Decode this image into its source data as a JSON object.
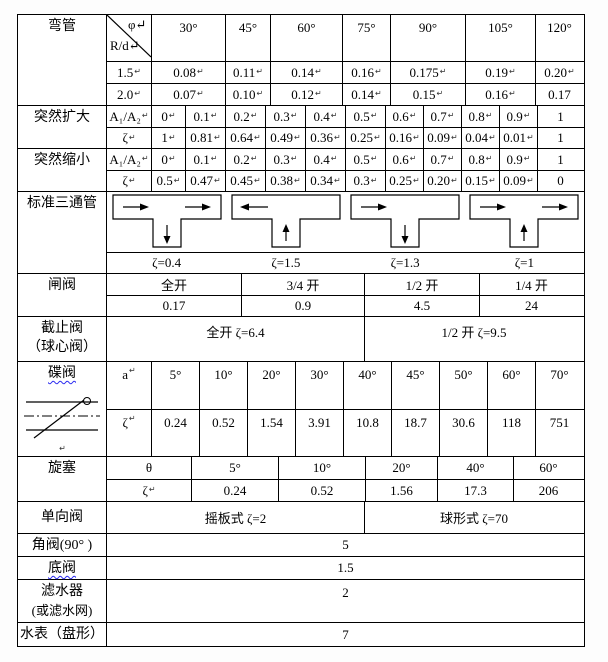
{
  "table": {
    "bend": {
      "label": "弯管",
      "corner_top": "φ↵",
      "corner_bottom": "R/d↵",
      "angles": [
        "30°",
        "45°",
        "60°",
        "75°",
        "90°",
        "105°",
        "120°"
      ],
      "rows": [
        [
          "1.5↵",
          "0.08↵",
          "0.11↵",
          "0.14↵",
          "0.16↵",
          "0.175↵",
          "0.19↵",
          "0.20↵"
        ],
        [
          "2.0↵",
          "0.07↵",
          "0.10↵",
          "0.12↵",
          "0.14↵",
          "0.15↵",
          "0.16↵",
          "0.17"
        ]
      ]
    },
    "expansion": {
      "label": "突然扩大",
      "rows": [
        [
          "A₁/A₂↵",
          "0↵",
          "0.1↵",
          "0.2↵",
          "0.3↵",
          "0.4↵",
          "0.5↵",
          "0.6↵",
          "0.7↵",
          "0.8↵",
          "0.9↵",
          "1"
        ],
        [
          "ζ↵",
          "1↵",
          "0.81↵",
          "0.64↵",
          "0.49↵",
          "0.36↵",
          "0.25↵",
          "0.16↵",
          "0.09↵",
          "0.04↵",
          "0.01↵",
          "1"
        ]
      ]
    },
    "contraction": {
      "label": "突然缩小",
      "rows": [
        [
          "A₁/A₂↵",
          "0↵",
          "0.1↵",
          "0.2↵",
          "0.3↵",
          "0.4↵",
          "0.5↵",
          "0.6↵",
          "0.7↵",
          "0.8↵",
          "0.9↵",
          "1"
        ],
        [
          "ζ↵",
          "0.5↵",
          "0.47↵",
          "0.45↵",
          "0.38↵",
          "0.34↵",
          "0.3↵",
          "0.25↵",
          "0.20↵",
          "0.15↵",
          "0.09↵",
          "0"
        ]
      ]
    },
    "tee": {
      "label": "标准三通管",
      "diagrams": [
        {
          "flow": "run-flow-right-branch-down",
          "zeta": "ζ=0.4"
        },
        {
          "flow": "branch-up-out-left",
          "zeta": "ζ=1.5"
        },
        {
          "flow": "in-left-branch-down",
          "zeta": "ζ=1.3"
        },
        {
          "flow": "run-flow-right-branch-up",
          "zeta": "ζ=1"
        }
      ]
    },
    "gate": {
      "label": "闸阀",
      "headers": [
        "全开",
        "3/4 开",
        "1/2 开",
        "1/4 开"
      ],
      "values": [
        "0.17",
        "0.9",
        "4.5",
        "24"
      ]
    },
    "globe": {
      "label_line1": "截止阀",
      "label_line2": "（球心阀）",
      "cells": [
        "全开 ζ=6.4",
        "1/2 开 ζ=9.5"
      ]
    },
    "disc": {
      "label": "碟阀",
      "corner": "a↵",
      "zeta_label": "ζ↵",
      "angles": [
        "5°",
        "10°",
        "20°",
        "30°",
        "40°",
        "45°",
        "50°",
        "60°",
        "70°"
      ],
      "values": [
        "0.24",
        "0.52",
        "1.54",
        "3.91",
        "10.8",
        "18.7",
        "30.6",
        "118",
        "751"
      ],
      "mark": "↵"
    },
    "cock": {
      "label": "旋塞",
      "rows": [
        [
          "θ",
          "5°",
          "10°",
          "20°",
          "40°",
          "60°"
        ],
        [
          "ζ↵",
          "0.24",
          "0.52",
          "1.56",
          "17.3",
          "206"
        ]
      ]
    },
    "check": {
      "label": "单向阀",
      "cells": [
        "摇板式 ζ=2",
        "球形式 ζ=70"
      ]
    },
    "angle_valve": {
      "label": "角阀(90° )",
      "value": "5"
    },
    "foot_valve": {
      "label": "底阀",
      "value": "1.5"
    },
    "strainer": {
      "label_line1": "滤水器",
      "label_line2": "(或滤水网)",
      "value": "2"
    },
    "meter": {
      "label": "水表（盘形）",
      "value": "7"
    }
  }
}
